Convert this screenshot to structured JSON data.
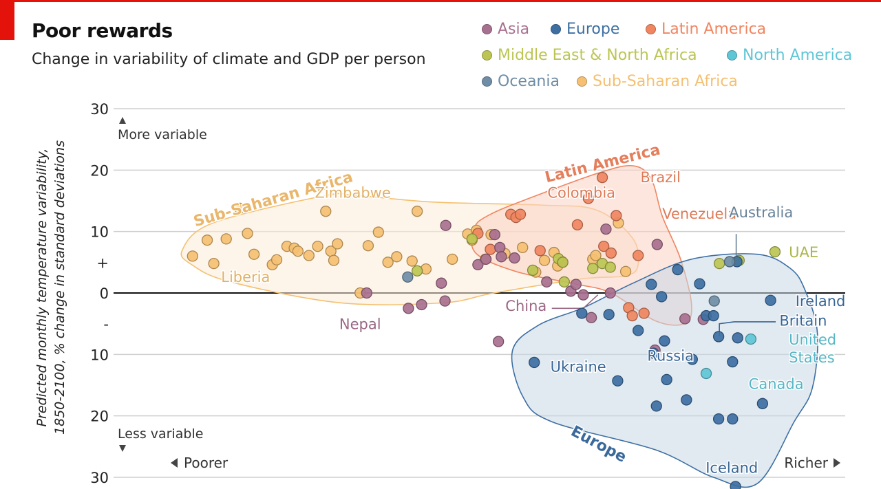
{
  "title": "Poor rewards",
  "subtitle": "Change in variability of climate and GDP per person",
  "colors": {
    "accent": "#e3120b",
    "Asia": "#a8708f",
    "Europe": "#3d6fa3",
    "Latin America": "#f08560",
    "Middle East & North Africa": "#bcc553",
    "North America": "#5fc6d6",
    "Oceania": "#6f8da6",
    "Sub-Saharan Africa": "#f5c071"
  },
  "legend": [
    {
      "name": "Asia",
      "color": "#a8708f"
    },
    {
      "name": "Europe",
      "color": "#3d6fa3"
    },
    {
      "name": "Latin America",
      "color": "#f08560"
    },
    {
      "name": "Middle East & North Africa",
      "color": "#bcc553"
    },
    {
      "name": "North America",
      "color": "#5fc6d6"
    },
    {
      "name": "Oceania",
      "color": "#6f8da6"
    },
    {
      "name": "Sub-Saharan Africa",
      "color": "#f5c071"
    }
  ],
  "chart_data": {
    "type": "scatter",
    "title": "Poor rewards",
    "subtitle": "Change in variability of climate and GDP per person",
    "ylabel": "Predicted monthly temperature variability, 1850-2100, % change in standard deviations",
    "xlabel_left": "Poorer",
    "xlabel_right": "Richer",
    "ytop_label": "More variable",
    "ybottom_label": "Less variable",
    "ylim": [
      -30,
      30
    ],
    "xlim": [
      0,
      1
    ],
    "yticks": [
      {
        "value": 30,
        "label": "30"
      },
      {
        "value": 20,
        "label": "20"
      },
      {
        "value": 10,
        "label": "10"
      },
      {
        "value": 5,
        "label": "+"
      },
      {
        "value": 0,
        "label": "0"
      },
      {
        "value": -5,
        "label": "-"
      },
      {
        "value": -10,
        "label": "10"
      },
      {
        "value": -20,
        "label": "20"
      },
      {
        "value": -30,
        "label": "30"
      }
    ],
    "grid": true,
    "legend_position": "top-right",
    "group_labels": [
      {
        "text": "Sub-Saharan Africa",
        "region": "Sub-Saharan Africa",
        "x": 0.22,
        "y": 14.5,
        "rotate": -16
      },
      {
        "text": "Latin America",
        "region": "Latin America",
        "x": 0.67,
        "y": 20.3,
        "rotate": -14
      },
      {
        "text": "Europe",
        "region": "Europe",
        "x": 0.66,
        "y": -25.3,
        "rotate": 28
      }
    ],
    "annotations": [
      {
        "text": "Zimbabwe",
        "region": "Sub-Saharan Africa",
        "x": 0.327,
        "y": 15.5,
        "anchor": "middle"
      },
      {
        "text": "Liberia",
        "region": "Sub-Saharan Africa",
        "x": 0.147,
        "y": 1.8,
        "anchor": "start"
      },
      {
        "text": "Nepal",
        "region": "Asia",
        "x": 0.337,
        "y": -5.9,
        "anchor": "middle"
      },
      {
        "text": "Brazil",
        "region": "Latin America",
        "x": 0.72,
        "y": 18.0,
        "anchor": "start"
      },
      {
        "text": "Colombia",
        "region": "Latin America",
        "x": 0.593,
        "y": 15.5,
        "anchor": "start"
      },
      {
        "text": "Venezuela",
        "region": "Latin America",
        "x": 0.75,
        "y": 12.1,
        "anchor": "start"
      },
      {
        "text": "China",
        "region": "Asia",
        "x": 0.592,
        "y": -2.9,
        "anchor": "end"
      },
      {
        "text": "Russia",
        "region": "Europe",
        "x": 0.793,
        "y": -11.0,
        "anchor": "end"
      },
      {
        "text": "Ukraine",
        "region": "Europe",
        "x": 0.597,
        "y": -12.8,
        "anchor": "start"
      },
      {
        "text": "Iceland",
        "region": "Europe",
        "x": 0.845,
        "y": -29.3,
        "anchor": "middle"
      },
      {
        "text": "Australia",
        "region": "Oceania",
        "x": 0.885,
        "y": 12.3,
        "anchor": "middle"
      },
      {
        "text": "UAE",
        "region": "Middle East & North Africa",
        "x": 0.923,
        "y": 5.8,
        "anchor": "start"
      },
      {
        "text": "Ireland",
        "region": "Europe",
        "x": 0.932,
        "y": -2.1,
        "anchor": "start"
      },
      {
        "text": "Britain",
        "region": "Europe",
        "x": 0.91,
        "y": -5.3,
        "anchor": "start"
      },
      {
        "text": "United",
        "region": "North America",
        "x": 0.923,
        "y": -8.4,
        "anchor": "start"
      },
      {
        "text": "States",
        "region": "North America",
        "x": 0.923,
        "y": -11.3,
        "anchor": "start"
      },
      {
        "text": "Canada",
        "region": "North America",
        "x": 0.868,
        "y": -15.6,
        "anchor": "start"
      }
    ],
    "leaders": [
      {
        "region": "Asia",
        "points": [
          [
            0.599,
            -2.5
          ],
          [
            0.642,
            -2.5
          ],
          [
            0.662,
            -0.3
          ]
        ]
      },
      {
        "region": "Oceania",
        "points": [
          [
            0.851,
            5.2
          ],
          [
            0.851,
            9.6
          ]
        ]
      },
      {
        "region": "Europe",
        "points": [
          [
            0.828,
            -7.0
          ],
          [
            0.828,
            -5.0
          ],
          [
            0.848,
            -4.7
          ],
          [
            0.905,
            -4.7
          ]
        ]
      }
    ],
    "hulls": [
      {
        "region": "Sub-Saharan Africa",
        "points": [
          [
            0.094,
            7
          ],
          [
            0.136,
            11.4
          ],
          [
            0.287,
            15.8
          ],
          [
            0.33,
            15.9
          ],
          [
            0.437,
            14.8
          ],
          [
            0.586,
            14.3
          ],
          [
            0.66,
            13.5
          ],
          [
            0.709,
            9
          ],
          [
            0.717,
            4.6
          ],
          [
            0.7,
            2.8
          ],
          [
            0.64,
            2.3
          ],
          [
            0.52,
            0
          ],
          [
            0.45,
            -1.6
          ],
          [
            0.31,
            -1.6
          ],
          [
            0.16,
            1.8
          ],
          [
            0.107,
            4.6
          ]
        ]
      },
      {
        "region": "Latin America",
        "points": [
          [
            0.493,
            10.6
          ],
          [
            0.515,
            12.8
          ],
          [
            0.57,
            15.5
          ],
          [
            0.662,
            19.5
          ],
          [
            0.71,
            20.7
          ],
          [
            0.735,
            18.5
          ],
          [
            0.75,
            12.5
          ],
          [
            0.775,
            5.5
          ],
          [
            0.79,
            -2
          ],
          [
            0.78,
            -5
          ],
          [
            0.74,
            -4.5
          ],
          [
            0.68,
            0
          ],
          [
            0.63,
            1.5
          ],
          [
            0.55,
            3.5
          ],
          [
            0.495,
            6.5
          ]
        ]
      },
      {
        "region": "Europe",
        "points": [
          [
            0.545,
            -9.5
          ],
          [
            0.58,
            -5.3
          ],
          [
            0.644,
            -2.3
          ],
          [
            0.71,
            1.6
          ],
          [
            0.79,
            5.5
          ],
          [
            0.88,
            6.3
          ],
          [
            0.925,
            4
          ],
          [
            0.945,
            0.5
          ],
          [
            0.962,
            -6.5
          ],
          [
            0.955,
            -15.5
          ],
          [
            0.93,
            -21
          ],
          [
            0.88,
            -31
          ],
          [
            0.82,
            -30
          ],
          [
            0.74,
            -25.5
          ],
          [
            0.6,
            -21
          ],
          [
            0.56,
            -17
          ]
        ]
      }
    ],
    "series": [
      {
        "name": "Sub-Saharan Africa",
        "color": "#f5c071",
        "points": [
          [
            0.108,
            6.0
          ],
          [
            0.128,
            8.6
          ],
          [
            0.137,
            4.8
          ],
          [
            0.154,
            8.8
          ],
          [
            0.172,
            13.8
          ],
          [
            0.183,
            9.7
          ],
          [
            0.192,
            6.3
          ],
          [
            0.217,
            4.6
          ],
          [
            0.223,
            5.4
          ],
          [
            0.237,
            7.6
          ],
          [
            0.247,
            7.3
          ],
          [
            0.252,
            6.8
          ],
          [
            0.267,
            6.1
          ],
          [
            0.279,
            7.6
          ],
          [
            0.29,
            13.3
          ],
          [
            0.297,
            6.8
          ],
          [
            0.301,
            5.3
          ],
          [
            0.306,
            8.0
          ],
          [
            0.337,
            0.0
          ],
          [
            0.348,
            7.7
          ],
          [
            0.362,
            9.9
          ],
          [
            0.375,
            5.0
          ],
          [
            0.387,
            5.9
          ],
          [
            0.408,
            5.2
          ],
          [
            0.415,
            13.3
          ],
          [
            0.427,
            3.9
          ],
          [
            0.463,
            5.5
          ],
          [
            0.484,
            9.6
          ],
          [
            0.49,
            8.6
          ],
          [
            0.496,
            10.2
          ],
          [
            0.508,
            5.5
          ],
          [
            0.516,
            9.5
          ],
          [
            0.535,
            6.4
          ],
          [
            0.559,
            7.4
          ],
          [
            0.577,
            3.4
          ],
          [
            0.589,
            5.3
          ],
          [
            0.602,
            6.6
          ],
          [
            0.607,
            4.4
          ],
          [
            0.655,
            5.5
          ],
          [
            0.69,
            11.4
          ],
          [
            0.7,
            3.5
          ],
          [
            0.659,
            6.1
          ]
        ]
      },
      {
        "name": "Latin America",
        "color": "#f08560",
        "points": [
          [
            0.498,
            9.7
          ],
          [
            0.515,
            7.1
          ],
          [
            0.543,
            12.8
          ],
          [
            0.55,
            12.3
          ],
          [
            0.556,
            12.8
          ],
          [
            0.583,
            6.9
          ],
          [
            0.613,
            5.1
          ],
          [
            0.634,
            11.1
          ],
          [
            0.649,
            15.4
          ],
          [
            0.668,
            18.8
          ],
          [
            0.67,
            7.6
          ],
          [
            0.68,
            6.5
          ],
          [
            0.687,
            12.6
          ],
          [
            0.704,
            -2.4
          ],
          [
            0.709,
            -3.7
          ],
          [
            0.717,
            6.1
          ],
          [
            0.725,
            -3.3
          ]
        ]
      },
      {
        "name": "Asia",
        "color": "#a8708f",
        "points": [
          [
            0.346,
            0.0
          ],
          [
            0.403,
            -2.5
          ],
          [
            0.421,
            -1.9
          ],
          [
            0.448,
            1.6
          ],
          [
            0.453,
            -1.3
          ],
          [
            0.454,
            11.0
          ],
          [
            0.498,
            4.6
          ],
          [
            0.509,
            5.5
          ],
          [
            0.521,
            9.5
          ],
          [
            0.528,
            7.4
          ],
          [
            0.53,
            5.9
          ],
          [
            0.548,
            5.7
          ],
          [
            0.526,
            -7.9
          ],
          [
            0.592,
            1.8
          ],
          [
            0.625,
            0.3
          ],
          [
            0.632,
            1.4
          ],
          [
            0.642,
            -0.3
          ],
          [
            0.653,
            -4.0
          ],
          [
            0.673,
            10.4
          ],
          [
            0.679,
            0.0
          ],
          [
            0.74,
            -9.3
          ],
          [
            0.743,
            7.9
          ],
          [
            0.781,
            -4.2
          ],
          [
            0.806,
            -4.3
          ]
        ]
      },
      {
        "name": "Middle East & North Africa",
        "color": "#bcc553",
        "points": [
          [
            0.415,
            3.6
          ],
          [
            0.49,
            8.8
          ],
          [
            0.573,
            3.7
          ],
          [
            0.608,
            5.6
          ],
          [
            0.614,
            5.0
          ],
          [
            0.616,
            1.8
          ],
          [
            0.655,
            4.0
          ],
          [
            0.668,
            4.8
          ],
          [
            0.679,
            4.2
          ],
          [
            0.828,
            4.8
          ],
          [
            0.855,
            5.3
          ],
          [
            0.904,
            6.7
          ]
        ]
      },
      {
        "name": "Europe",
        "color": "#3d6fa3",
        "points": [
          [
            0.575,
            -11.3
          ],
          [
            0.64,
            -3.3
          ],
          [
            0.677,
            -3.5
          ],
          [
            0.689,
            -14.3
          ],
          [
            0.717,
            -6.1
          ],
          [
            0.735,
            1.4
          ],
          [
            0.738,
            -9.8
          ],
          [
            0.742,
            -18.4
          ],
          [
            0.749,
            -0.6
          ],
          [
            0.753,
            -7.8
          ],
          [
            0.756,
            -14.1
          ],
          [
            0.771,
            3.8
          ],
          [
            0.783,
            -17.4
          ],
          [
            0.801,
            1.5
          ],
          [
            0.81,
            -3.7
          ],
          [
            0.827,
            -20.5
          ],
          [
            0.82,
            -3.7
          ],
          [
            0.827,
            -7.1
          ],
          [
            0.846,
            -11.2
          ],
          [
            0.846,
            -20.5
          ],
          [
            0.853,
            -7.3
          ],
          [
            0.85,
            -31.5
          ],
          [
            0.887,
            -18.0
          ],
          [
            0.898,
            -1.2
          ],
          [
            0.791,
            -10.8
          ],
          [
            0.852,
            5.1
          ]
        ]
      },
      {
        "name": "North America",
        "color": "#5fc6d6",
        "points": [
          [
            0.81,
            -13.1
          ],
          [
            0.871,
            -7.5
          ]
        ]
      },
      {
        "name": "Oceania",
        "color": "#6f8da6",
        "points": [
          [
            0.402,
            2.6
          ],
          [
            0.842,
            5.1
          ],
          [
            0.821,
            -1.3
          ]
        ]
      }
    ]
  }
}
